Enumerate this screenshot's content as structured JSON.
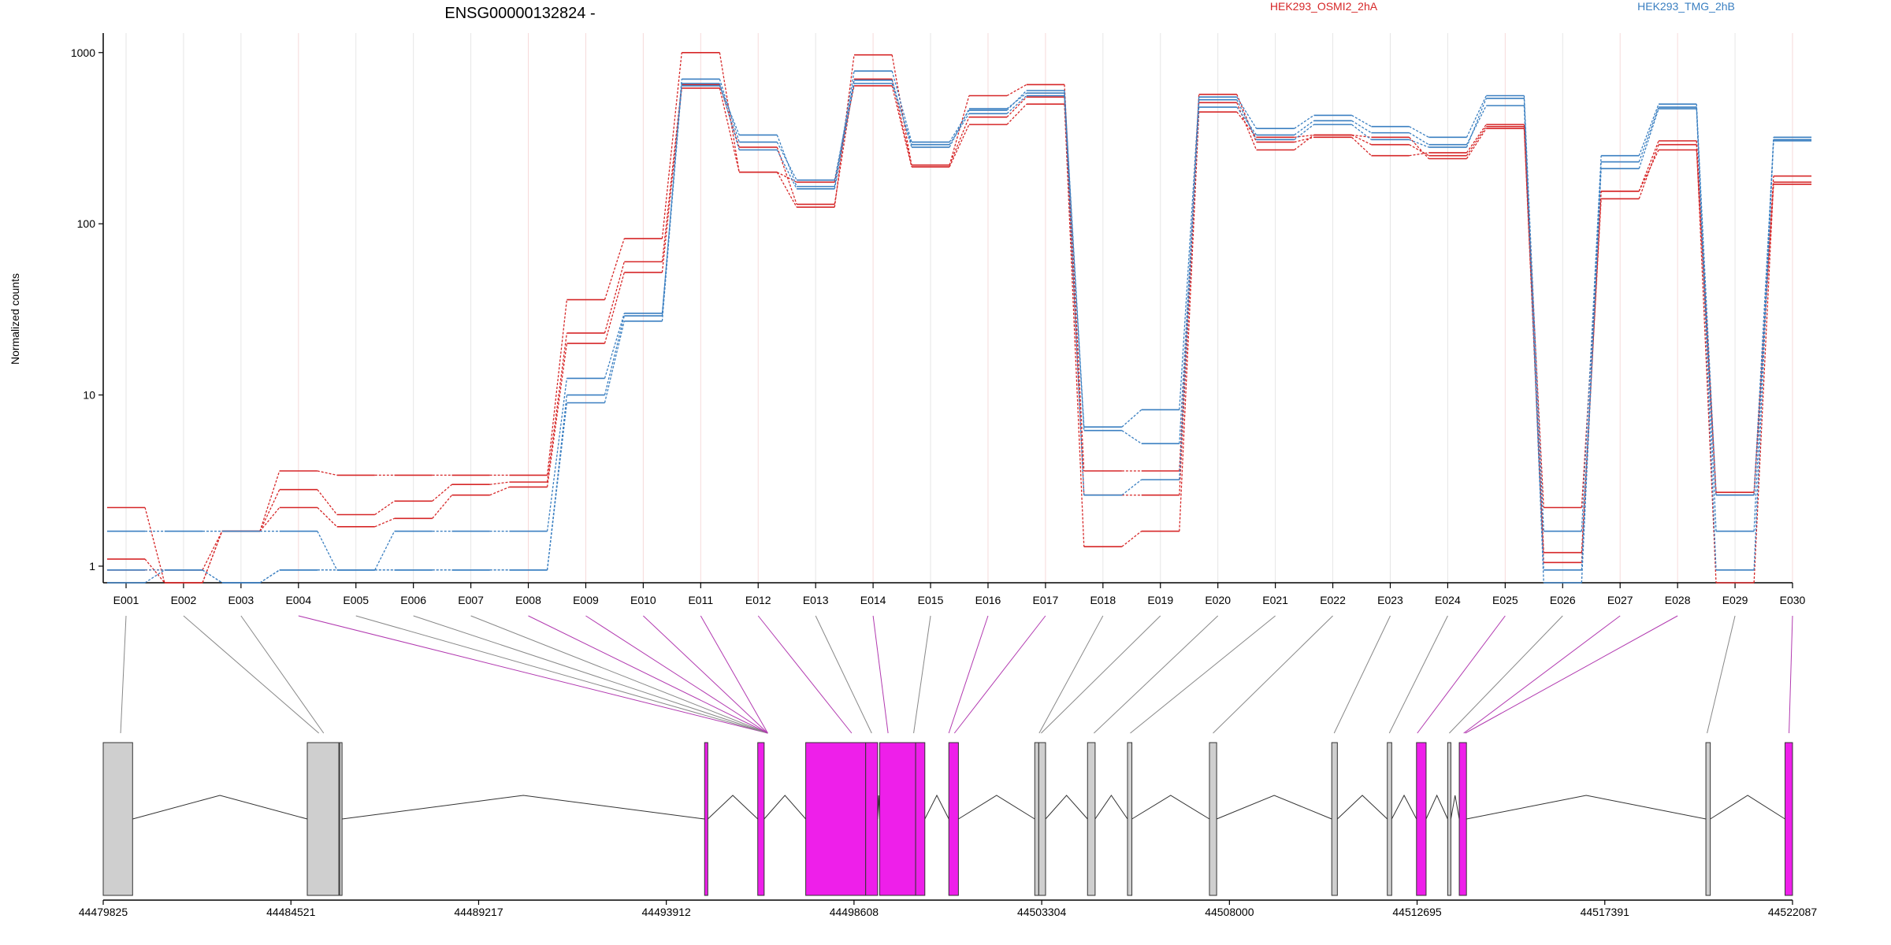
{
  "chart_data": {
    "type": "line",
    "title": "ENSG00000132824 -",
    "ylabel": "Normalized counts",
    "y_scale": "log",
    "ylim": [
      0.8,
      1300
    ],
    "y_ticks": [
      {
        "value": 1,
        "label": "1"
      },
      {
        "value": 10,
        "label": "10"
      },
      {
        "value": 100,
        "label": "100"
      },
      {
        "value": 1000,
        "label": "1000"
      }
    ],
    "categories": [
      "E001",
      "E002",
      "E003",
      "E004",
      "E005",
      "E006",
      "E007",
      "E008",
      "E009",
      "E010",
      "E011",
      "E012",
      "E013",
      "E014",
      "E015",
      "E016",
      "E017",
      "E018",
      "E019",
      "E020",
      "E021",
      "E022",
      "E023",
      "E024",
      "E025",
      "E026",
      "E027",
      "E028",
      "E029",
      "E030"
    ],
    "groups": [
      {
        "name": "HEK293_OSMI2_2hA",
        "color": "#d62728"
      },
      {
        "name": "HEK293_TMG_2hB",
        "color": "#3a7fc1"
      }
    ],
    "series": [
      {
        "group": 0,
        "values": [
          2.2,
          0.8,
          1.6,
          3.6,
          3.4,
          3.4,
          3.4,
          3.4,
          36,
          82,
          1000,
          200,
          125,
          970,
          220,
          560,
          650,
          3.6,
          3.6,
          570,
          300,
          320,
          250,
          260,
          380,
          2.2,
          155,
          305,
          2.7,
          190
        ]
      },
      {
        "group": 0,
        "values": [
          1.1,
          0.8,
          1.6,
          2.8,
          2.0,
          2.4,
          3.0,
          3.1,
          23,
          60,
          650,
          280,
          130,
          700,
          220,
          420,
          550,
          2.6,
          2.6,
          510,
          270,
          330,
          290,
          250,
          370,
          1.2,
          140,
          290,
          0.8,
          175
        ]
      },
      {
        "group": 0,
        "values": [
          0.95,
          0.95,
          1.6,
          2.2,
          1.7,
          1.9,
          2.6,
          2.9,
          20,
          52,
          620,
          200,
          175,
          640,
          215,
          380,
          500,
          1.3,
          1.6,
          450,
          320,
          330,
          320,
          240,
          360,
          1.05,
          155,
          270,
          2.6,
          170
        ]
      },
      {
        "group": 1,
        "values": [
          1.6,
          1.6,
          1.6,
          1.6,
          0.95,
          1.6,
          1.6,
          1.6,
          12.5,
          30,
          640,
          330,
          165,
          780,
          300,
          460,
          600,
          6.5,
          8.2,
          550,
          360,
          430,
          370,
          320,
          560,
          1.6,
          250,
          500,
          1.6,
          320
        ]
      },
      {
        "group": 1,
        "values": [
          0.95,
          0.95,
          0.8,
          0.95,
          0.95,
          0.95,
          0.95,
          0.95,
          10,
          29,
          700,
          300,
          180,
          690,
          280,
          470,
          580,
          6.2,
          5.2,
          480,
          330,
          400,
          340,
          290,
          490,
          0.95,
          230,
          480,
          2.6,
          305
        ]
      },
      {
        "group": 1,
        "values": [
          0.8,
          0.95,
          0.8,
          0.95,
          0.95,
          0.95,
          0.95,
          0.95,
          9,
          27,
          660,
          270,
          160,
          660,
          290,
          440,
          560,
          2.6,
          3.2,
          530,
          310,
          380,
          310,
          280,
          540,
          0.8,
          210,
          470,
          0.95,
          310
        ]
      }
    ],
    "exon_types": [
      "grey",
      "grey",
      "grey",
      "pink",
      "grey",
      "grey",
      "grey",
      "pink",
      "pink",
      "pink",
      "pink",
      "pink",
      "grey",
      "pink",
      "grey",
      "pink",
      "pink",
      "grey",
      "grey",
      "grey",
      "grey",
      "grey",
      "grey",
      "grey",
      "pink",
      "grey",
      "pink",
      "pink",
      "grey",
      "pink"
    ],
    "genomic_range": [
      44479825,
      44522087
    ],
    "genomic_ticks": [
      44479825,
      44484521,
      44489217,
      44493912,
      44498608,
      44503304,
      44508000,
      44512695,
      44517391,
      44522087
    ],
    "gene_model_exons": [
      {
        "start": 44479825,
        "end": 44480560,
        "type": "grey"
      },
      {
        "start": 44484930,
        "end": 44485720,
        "type": "grey"
      },
      {
        "start": 44485740,
        "end": 44485800,
        "type": "grey"
      },
      {
        "start": 44494870,
        "end": 44494950,
        "type": "pink"
      },
      {
        "start": 44496200,
        "end": 44496360,
        "type": "pink"
      },
      {
        "start": 44497400,
        "end": 44498900,
        "type": "pink"
      },
      {
        "start": 44498900,
        "end": 44499200,
        "type": "pink"
      },
      {
        "start": 44499250,
        "end": 44500150,
        "type": "pink"
      },
      {
        "start": 44500150,
        "end": 44500380,
        "type": "pink"
      },
      {
        "start": 44500980,
        "end": 44501220,
        "type": "pink"
      },
      {
        "start": 44503130,
        "end": 44503230,
        "type": "grey"
      },
      {
        "start": 44503230,
        "end": 44503400,
        "type": "grey"
      },
      {
        "start": 44504450,
        "end": 44504640,
        "type": "grey"
      },
      {
        "start": 44505450,
        "end": 44505560,
        "type": "grey"
      },
      {
        "start": 44507500,
        "end": 44507680,
        "type": "grey"
      },
      {
        "start": 44510560,
        "end": 44510700,
        "type": "grey"
      },
      {
        "start": 44511950,
        "end": 44512060,
        "type": "grey"
      },
      {
        "start": 44512680,
        "end": 44512920,
        "type": "pink"
      },
      {
        "start": 44513460,
        "end": 44513540,
        "type": "grey"
      },
      {
        "start": 44513750,
        "end": 44513930,
        "type": "pink"
      },
      {
        "start": 44519920,
        "end": 44520030,
        "type": "grey"
      },
      {
        "start": 44521900,
        "end": 44522087,
        "type": "pink"
      }
    ],
    "exon_anchors": [
      44480260,
      44485220,
      44485340,
      44496450,
      44496450,
      44496450,
      44496450,
      44496450,
      44496450,
      44496450,
      44496450,
      44498550,
      44499050,
      44499460,
      44500100,
      44500980,
      44501120,
      44503240,
      44503290,
      44504610,
      44505520,
      44507590,
      44510620,
      44512000,
      44512700,
      44513500,
      44513860,
      44513900,
      44519950,
      44522000
    ]
  }
}
